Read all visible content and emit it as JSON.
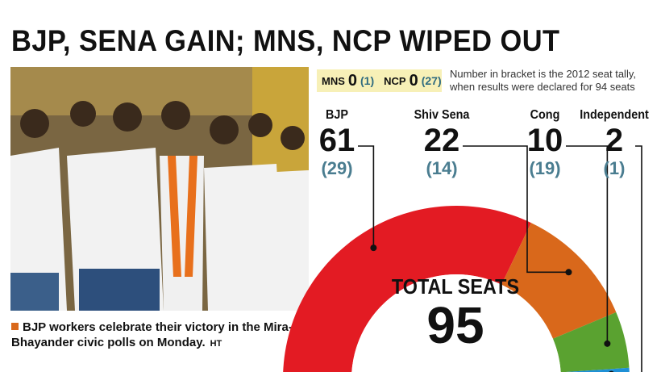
{
  "headline": "BJP, SENA GAIN; MNS, NCP WIPED OUT",
  "caption": {
    "text": "BJP workers celebrate their victory in the Mira-Bhayander civic polls on Monday.",
    "credit": "HT"
  },
  "tally_box": {
    "mns_label": "MNS",
    "mns_value": "0",
    "mns_prev": "(1)",
    "ncp_label": "NCP",
    "ncp_value": "0",
    "ncp_prev": "(27)"
  },
  "note": "Number in bracket is the 2012 seat tally, when results were declared for 94 seats",
  "chart_data": {
    "type": "pie",
    "subtype": "half-donut gauge",
    "title": "TOTAL SEATS",
    "total": 95,
    "total_2012": 94,
    "series": [
      {
        "name": "BJP",
        "value": 61,
        "prev": 29,
        "color": "#e31b23"
      },
      {
        "name": "Shiv Sena",
        "value": 22,
        "prev": 14,
        "color": "#d9681b"
      },
      {
        "name": "Cong",
        "value": 10,
        "prev": 19,
        "color": "#5aa230"
      },
      {
        "name": "Independent",
        "value": 2,
        "prev": 1,
        "color": "#1e90d6"
      }
    ],
    "extra": [
      {
        "name": "MNS",
        "value": 0,
        "prev": 1
      },
      {
        "name": "NCP",
        "value": 0,
        "prev": 27
      }
    ]
  }
}
